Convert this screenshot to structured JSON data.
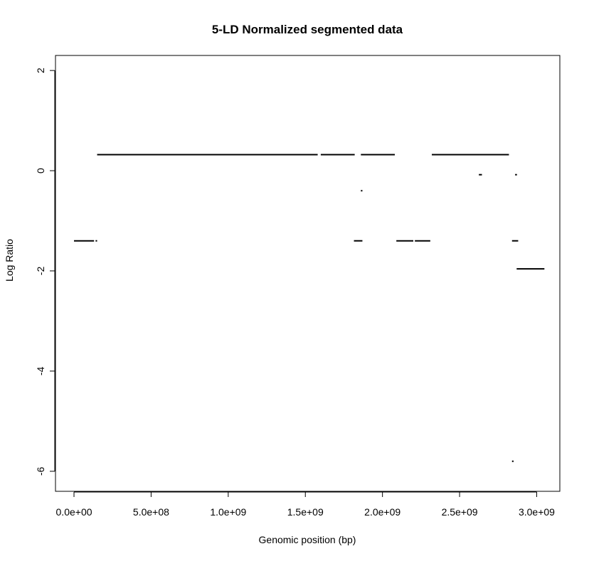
{
  "chart_data": {
    "type": "line",
    "title": "5-LD Normalized segmented data",
    "xlabel": "Genomic position (bp)",
    "ylabel": "Log Ratio",
    "xlim": [
      -120000000,
      3150000000
    ],
    "ylim": [
      -6.4,
      2.3
    ],
    "x_ticks": [
      {
        "value": 0,
        "label": "0.0e+00"
      },
      {
        "value": 500000000,
        "label": "5.0e+08"
      },
      {
        "value": 1000000000,
        "label": "1.0e+09"
      },
      {
        "value": 1500000000,
        "label": "1.5e+09"
      },
      {
        "value": 2000000000,
        "label": "2.0e+09"
      },
      {
        "value": 2500000000,
        "label": "2.5e+09"
      },
      {
        "value": 3000000000,
        "label": "3.0e+09"
      }
    ],
    "y_ticks": [
      {
        "value": 2,
        "label": "2"
      },
      {
        "value": 0,
        "label": "0"
      },
      {
        "value": -2,
        "label": "-2"
      },
      {
        "value": -4,
        "label": "-4"
      },
      {
        "value": -6,
        "label": "-6"
      }
    ],
    "grid": false,
    "segments": [
      {
        "x_start": 0,
        "x_end": 130000000,
        "y": -1.4
      },
      {
        "x_start": 140000000,
        "x_end": 150000000,
        "y": -1.4
      },
      {
        "x_start": 150000000,
        "x_end": 1580000000,
        "y": 0.32
      },
      {
        "x_start": 1600000000,
        "x_end": 1820000000,
        "y": 0.32
      },
      {
        "x_start": 1815000000,
        "x_end": 1870000000,
        "y": -1.4
      },
      {
        "x_start": 1860000000,
        "x_end": 1870000000,
        "y": -0.4
      },
      {
        "x_start": 1860000000,
        "x_end": 2080000000,
        "y": 0.32
      },
      {
        "x_start": 2090000000,
        "x_end": 2200000000,
        "y": -1.4
      },
      {
        "x_start": 2210000000,
        "x_end": 2310000000,
        "y": -1.4
      },
      {
        "x_start": 2320000000,
        "x_end": 2820000000,
        "y": 0.32
      },
      {
        "x_start": 2625000000,
        "x_end": 2645000000,
        "y": -0.08
      },
      {
        "x_start": 2840000000,
        "x_end": 2850000000,
        "y": -5.8
      },
      {
        "x_start": 2840000000,
        "x_end": 2880000000,
        "y": -1.4
      },
      {
        "x_start": 2860000000,
        "x_end": 2872000000,
        "y": -0.08
      },
      {
        "x_start": 2870000000,
        "x_end": 3050000000,
        "y": -1.96
      }
    ]
  }
}
